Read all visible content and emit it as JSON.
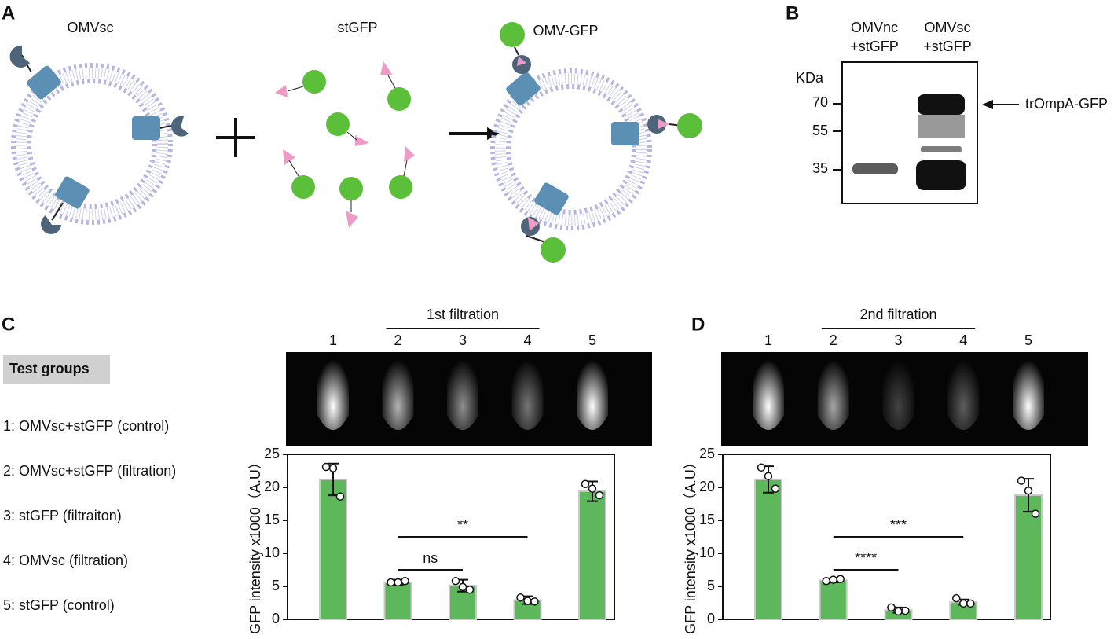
{
  "panel_labels": [
    "A",
    "B",
    "C",
    "D"
  ],
  "diagram": {
    "labels": [
      "OMVsc",
      "stGFP",
      "OMV-GFP"
    ]
  },
  "blot": {
    "lanes": [
      [
        "OMVnc",
        "+stGFP"
      ],
      [
        "OMVsc",
        "+stGFP"
      ]
    ],
    "unit_label": "KDa",
    "markers": [
      70,
      55,
      35
    ],
    "band_label": "trOmpA-GFP"
  },
  "legend": {
    "title": "Test groups",
    "items": [
      "1: OMVsc+stGFP (control)",
      "2: OMVsc+stGFP (filtration)",
      "3: stGFP (filtraiton)",
      "4: OMVsc (filtration)",
      "5: stGFP (control)"
    ]
  },
  "chart_data": [
    {
      "type": "bar",
      "title": "1st filtration",
      "categories": [
        "1",
        "2",
        "3",
        "4",
        "5"
      ],
      "values": [
        21.2,
        5.6,
        5.1,
        2.9,
        19.4
      ],
      "errors": [
        2.4,
        0.4,
        0.9,
        0.6,
        1.5
      ],
      "points": [
        [
          23.1,
          22.9,
          18.6
        ],
        [
          5.6,
          5.6,
          5.8
        ],
        [
          5.8,
          4.9,
          4.5
        ],
        [
          3.3,
          2.8,
          2.7
        ],
        [
          20.5,
          19.8,
          18.8
        ]
      ],
      "significance": [
        {
          "label": "ns",
          "y": 7.5
        },
        {
          "label": "**",
          "y": 12.5
        }
      ],
      "ylabel": "GFP intensity x1000（A.U）",
      "ylim": [
        0,
        25
      ],
      "yticks": [
        0,
        5,
        10,
        15,
        20,
        25
      ],
      "color": "#5cb85a"
    },
    {
      "type": "bar",
      "title": "2nd filtration",
      "categories": [
        "1",
        "2",
        "3",
        "4",
        "5"
      ],
      "values": [
        21.2,
        5.9,
        1.4,
        2.6,
        18.8
      ],
      "errors": [
        2.0,
        0.3,
        0.4,
        0.4,
        2.5
      ],
      "points": [
        [
          23.0,
          21.7,
          19.8
        ],
        [
          5.8,
          6.0,
          6.1
        ],
        [
          1.8,
          1.2,
          1.3
        ],
        [
          3.2,
          2.4,
          2.4
        ],
        [
          21.0,
          19.5,
          16.0
        ]
      ],
      "significance": [
        {
          "label": "****",
          "y": 7.5
        },
        {
          "label": "***",
          "y": 12.5
        }
      ],
      "ylabel": "GFP intensity x1000（A.U）",
      "ylim": [
        0,
        25
      ],
      "yticks": [
        0,
        5,
        10,
        15,
        20,
        25
      ],
      "color": "#5cb85a"
    }
  ]
}
